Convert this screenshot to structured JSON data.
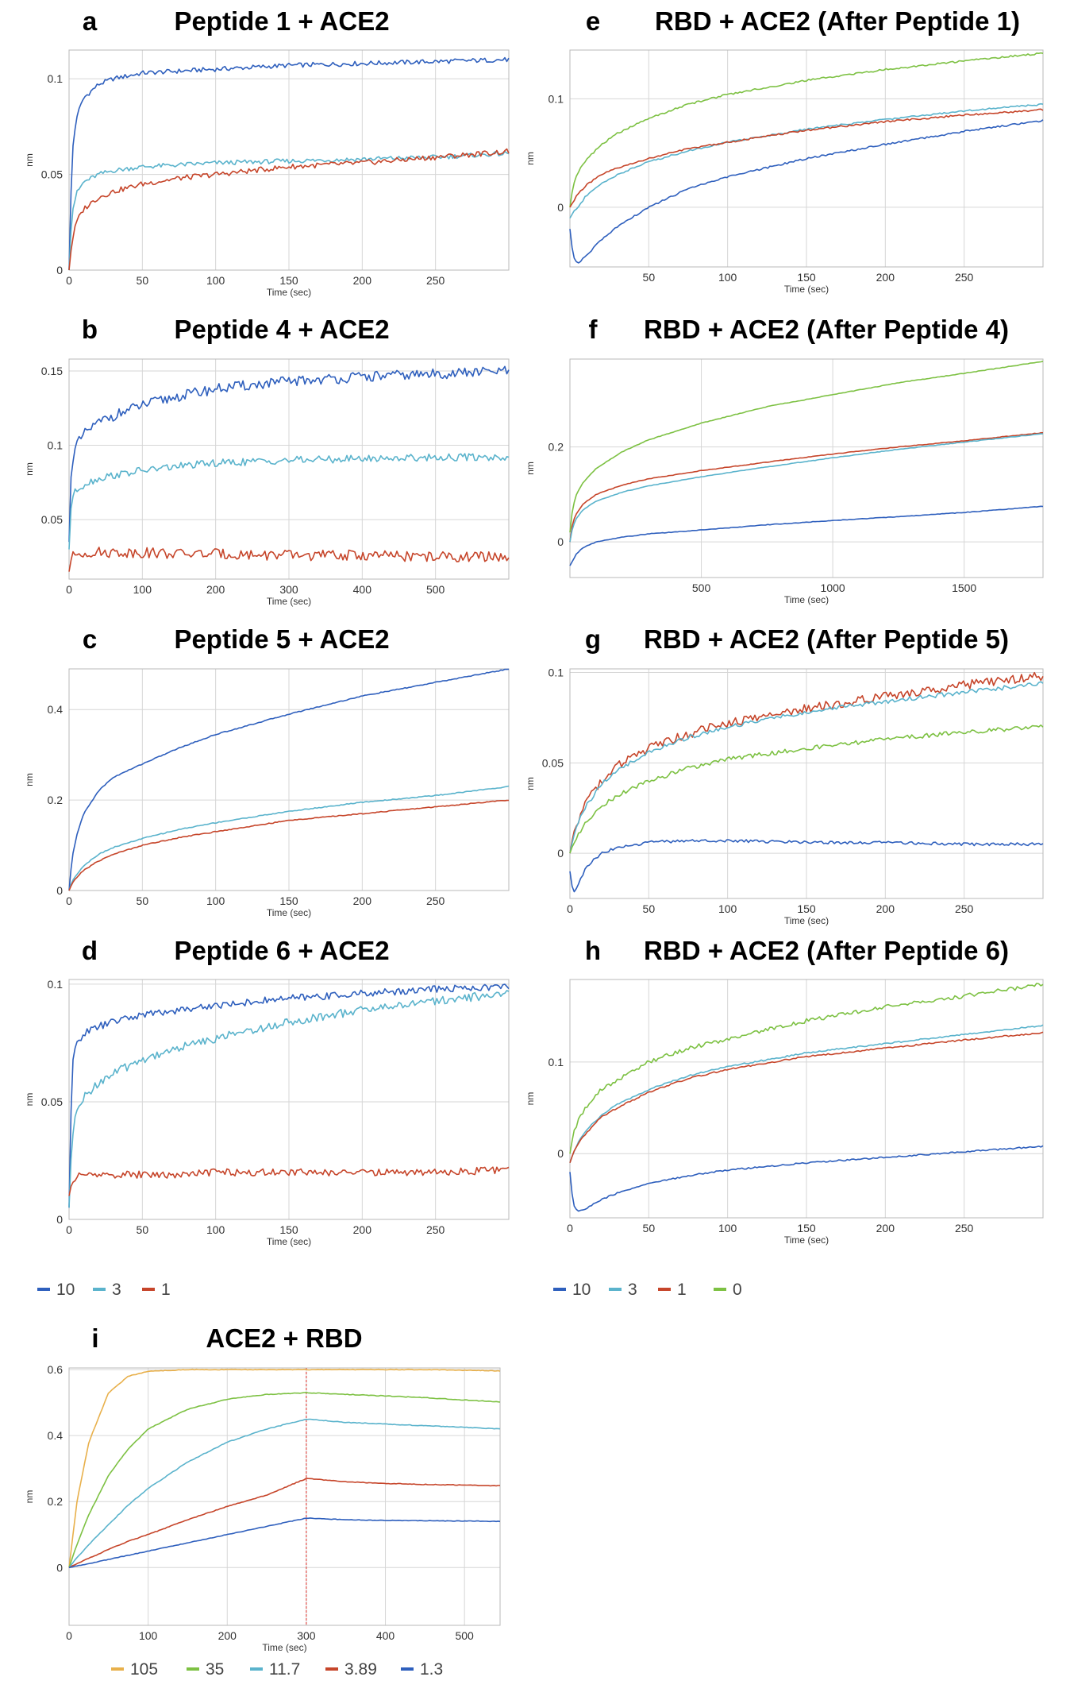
{
  "colors": {
    "c10": "#2e5fbd",
    "c3": "#5ab3cc",
    "c1": "#c6452a",
    "c0": "#7dc143",
    "c105": "#e8b04b"
  },
  "legends": [
    {
      "id": "legend-left",
      "items": [
        {
          "label": "10",
          "color": "#2e5fbd"
        },
        {
          "label": "3",
          "color": "#5ab3cc"
        },
        {
          "label": "1",
          "color": "#c6452a"
        }
      ]
    },
    {
      "id": "legend-right",
      "items": [
        {
          "label": "10",
          "color": "#2e5fbd"
        },
        {
          "label": "3",
          "color": "#5ab3cc"
        },
        {
          "label": "1",
          "color": "#c6452a"
        },
        {
          "label": "0",
          "color": "#7dc143"
        }
      ]
    },
    {
      "id": "legend-i",
      "items": [
        {
          "label": "105",
          "color": "#e8b04b"
        },
        {
          "label": "35",
          "color": "#7dc143"
        },
        {
          "label": "11.7",
          "color": "#5ab3cc"
        },
        {
          "label": "3.89",
          "color": "#c6452a"
        },
        {
          "label": "1.3",
          "color": "#2e5fbd"
        }
      ]
    }
  ],
  "chart_data": [
    {
      "type": "line",
      "id": "a",
      "letter": "a",
      "title": "Peptide 1 + ACE2",
      "xlabel": "Time (sec)",
      "ylabel": "nm",
      "xlim": [
        0,
        300
      ],
      "ylim": [
        0,
        0.115
      ],
      "xticks": [
        0,
        50,
        100,
        150,
        200,
        250
      ],
      "yticks": [
        0,
        0.05,
        0.1
      ],
      "x": [
        0,
        2,
        5,
        10,
        20,
        30,
        50,
        75,
        100,
        150,
        200,
        250,
        300
      ],
      "series": [
        {
          "name": "10",
          "color": "#2e5fbd",
          "noise": 0.0012,
          "values": [
            0.0,
            0.06,
            0.08,
            0.09,
            0.097,
            0.1,
            0.103,
            0.104,
            0.105,
            0.107,
            0.108,
            0.109,
            0.11
          ]
        },
        {
          "name": "3",
          "color": "#5ab3cc",
          "noise": 0.0012,
          "values": [
            0.0,
            0.03,
            0.04,
            0.046,
            0.05,
            0.052,
            0.054,
            0.055,
            0.056,
            0.057,
            0.058,
            0.059,
            0.061
          ]
        },
        {
          "name": "1",
          "color": "#c6452a",
          "noise": 0.0014,
          "values": [
            0.0,
            0.015,
            0.025,
            0.032,
            0.038,
            0.041,
            0.045,
            0.048,
            0.05,
            0.054,
            0.056,
            0.059,
            0.062
          ]
        }
      ]
    },
    {
      "type": "line",
      "id": "b",
      "letter": "b",
      "title": "Peptide 4 + ACE2",
      "xlabel": "Time (sec)",
      "ylabel": "nm",
      "xlim": [
        0,
        600
      ],
      "ylim": [
        0.01,
        0.158
      ],
      "xticks": [
        0,
        100,
        200,
        300,
        400,
        500
      ],
      "yticks": [
        0.05,
        0.1,
        0.15
      ],
      "x": [
        0,
        2,
        5,
        10,
        25,
        50,
        100,
        150,
        200,
        300,
        400,
        500,
        600
      ],
      "series": [
        {
          "name": "10",
          "color": "#2e5fbd",
          "noise": 0.0035,
          "values": [
            0.035,
            0.075,
            0.09,
            0.1,
            0.11,
            0.118,
            0.127,
            0.133,
            0.138,
            0.143,
            0.146,
            0.148,
            0.15
          ]
        },
        {
          "name": "3",
          "color": "#5ab3cc",
          "noise": 0.0025,
          "values": [
            0.03,
            0.055,
            0.065,
            0.07,
            0.075,
            0.079,
            0.083,
            0.086,
            0.088,
            0.09,
            0.091,
            0.092,
            0.092
          ]
        },
        {
          "name": "1",
          "color": "#c6452a",
          "noise": 0.0035,
          "values": [
            0.015,
            0.022,
            0.025,
            0.027,
            0.028,
            0.028,
            0.028,
            0.027,
            0.027,
            0.026,
            0.026,
            0.025,
            0.025
          ]
        }
      ]
    },
    {
      "type": "line",
      "id": "c",
      "letter": "c",
      "title": "Peptide 5 + ACE2",
      "xlabel": "Time (sec)",
      "ylabel": "nm",
      "xlim": [
        0,
        300
      ],
      "ylim": [
        0,
        0.49
      ],
      "xticks": [
        0,
        50,
        100,
        150,
        200,
        250
      ],
      "yticks": [
        0,
        0.2,
        0.4
      ],
      "x": [
        0,
        2,
        5,
        10,
        20,
        30,
        50,
        75,
        100,
        150,
        200,
        250,
        300
      ],
      "series": [
        {
          "name": "10",
          "color": "#2e5fbd",
          "noise": 0.001,
          "values": [
            0.0,
            0.07,
            0.12,
            0.17,
            0.22,
            0.25,
            0.28,
            0.315,
            0.345,
            0.39,
            0.43,
            0.46,
            0.49
          ]
        },
        {
          "name": "3",
          "color": "#5ab3cc",
          "noise": 0.001,
          "values": [
            0.0,
            0.02,
            0.035,
            0.055,
            0.08,
            0.095,
            0.115,
            0.135,
            0.15,
            0.175,
            0.195,
            0.21,
            0.23
          ]
        },
        {
          "name": "1",
          "color": "#c6452a",
          "noise": 0.001,
          "values": [
            0.0,
            0.015,
            0.028,
            0.045,
            0.065,
            0.08,
            0.1,
            0.117,
            0.13,
            0.155,
            0.17,
            0.185,
            0.2
          ]
        }
      ]
    },
    {
      "type": "line",
      "id": "d",
      "letter": "d",
      "title": "Peptide 6 + ACE2",
      "xlabel": "Time (sec)",
      "ylabel": "nm",
      "xlim": [
        0,
        300
      ],
      "ylim": [
        0,
        0.102
      ],
      "xticks": [
        0,
        50,
        100,
        150,
        200,
        250
      ],
      "yticks": [
        0,
        0.05,
        0.1
      ],
      "x": [
        0,
        2,
        5,
        10,
        20,
        30,
        50,
        75,
        100,
        150,
        200,
        250,
        300
      ],
      "series": [
        {
          "name": "10",
          "color": "#2e5fbd",
          "noise": 0.0015,
          "values": [
            0.005,
            0.065,
            0.075,
            0.079,
            0.082,
            0.084,
            0.087,
            0.089,
            0.091,
            0.094,
            0.096,
            0.098,
            0.099
          ]
        },
        {
          "name": "3",
          "color": "#5ab3cc",
          "noise": 0.0018,
          "values": [
            0.005,
            0.035,
            0.045,
            0.052,
            0.058,
            0.062,
            0.068,
            0.073,
            0.077,
            0.084,
            0.089,
            0.093,
            0.096
          ]
        },
        {
          "name": "1",
          "color": "#c6452a",
          "noise": 0.0015,
          "values": [
            0.01,
            0.016,
            0.018,
            0.019,
            0.019,
            0.019,
            0.019,
            0.019,
            0.02,
            0.02,
            0.02,
            0.02,
            0.021
          ]
        }
      ]
    },
    {
      "type": "line",
      "id": "e",
      "letter": "e",
      "title": "RBD + ACE2 (After Peptide 1)",
      "xlabel": "Time (sec)",
      "ylabel": "nm",
      "xlim": [
        0,
        300
      ],
      "ylim": [
        -0.055,
        0.145
      ],
      "xticks": [
        50,
        100,
        150,
        200,
        250
      ],
      "yticks": [
        0,
        0.1
      ],
      "x": [
        0,
        2,
        5,
        10,
        20,
        30,
        50,
        75,
        100,
        150,
        200,
        250,
        300
      ],
      "series": [
        {
          "name": "0",
          "color": "#7dc143",
          "noise": 0.0008,
          "values": [
            0.0,
            0.02,
            0.032,
            0.043,
            0.058,
            0.068,
            0.082,
            0.095,
            0.104,
            0.117,
            0.127,
            0.135,
            0.142
          ]
        },
        {
          "name": "3",
          "color": "#5ab3cc",
          "noise": 0.0008,
          "values": [
            -0.01,
            -0.005,
            0.0,
            0.01,
            0.022,
            0.03,
            0.042,
            0.052,
            0.06,
            0.072,
            0.081,
            0.089,
            0.095
          ]
        },
        {
          "name": "1",
          "color": "#c6452a",
          "noise": 0.0008,
          "values": [
            0.0,
            0.005,
            0.012,
            0.02,
            0.03,
            0.036,
            0.045,
            0.054,
            0.06,
            0.071,
            0.079,
            0.085,
            0.09
          ]
        },
        {
          "name": "10",
          "color": "#2e5fbd",
          "noise": 0.0008,
          "values": [
            -0.02,
            -0.045,
            -0.052,
            -0.045,
            -0.03,
            -0.018,
            0.0,
            0.017,
            0.028,
            0.045,
            0.058,
            0.07,
            0.08
          ]
        }
      ]
    },
    {
      "type": "line",
      "id": "f",
      "letter": "f",
      "title": "RBD + ACE2 (After Peptide 4)",
      "xlabel": "Time (sec)",
      "ylabel": "nm",
      "xlim": [
        0,
        1800
      ],
      "ylim": [
        -0.075,
        0.385
      ],
      "xticks": [
        500,
        1000,
        1500
      ],
      "yticks": [
        0,
        0.2
      ],
      "x": [
        0,
        10,
        25,
        50,
        100,
        200,
        300,
        500,
        750,
        1000,
        1250,
        1500,
        1800
      ],
      "series": [
        {
          "name": "0",
          "color": "#7dc143",
          "noise": 0.0006,
          "values": [
            0.02,
            0.07,
            0.1,
            0.125,
            0.155,
            0.19,
            0.215,
            0.25,
            0.285,
            0.31,
            0.335,
            0.355,
            0.38
          ]
        },
        {
          "name": "1",
          "color": "#c6452a",
          "noise": 0.0006,
          "values": [
            0.0,
            0.04,
            0.06,
            0.08,
            0.1,
            0.12,
            0.133,
            0.15,
            0.168,
            0.185,
            0.2,
            0.213,
            0.23
          ]
        },
        {
          "name": "3",
          "color": "#5ab3cc",
          "noise": 0.0006,
          "values": [
            0.0,
            0.03,
            0.05,
            0.068,
            0.086,
            0.105,
            0.118,
            0.137,
            0.158,
            0.177,
            0.195,
            0.21,
            0.228
          ]
        },
        {
          "name": "10",
          "color": "#2e5fbd",
          "noise": 0.0006,
          "values": [
            -0.05,
            -0.04,
            -0.025,
            -0.012,
            0.0,
            0.01,
            0.017,
            0.025,
            0.036,
            0.045,
            0.053,
            0.062,
            0.075
          ]
        }
      ]
    },
    {
      "type": "line",
      "id": "g",
      "letter": "g",
      "title": "RBD + ACE2 (After Peptide 5)",
      "xlabel": "Time (sec)",
      "ylabel": "nm",
      "xlim": [
        0,
        300
      ],
      "ylim": [
        -0.025,
        0.102
      ],
      "xticks": [
        0,
        50,
        100,
        150,
        200,
        250
      ],
      "yticks": [
        0,
        0.05,
        0.1
      ],
      "x": [
        0,
        2,
        5,
        10,
        20,
        30,
        50,
        75,
        100,
        150,
        200,
        250,
        300
      ],
      "series": [
        {
          "name": "1",
          "color": "#c6452a",
          "noise": 0.0025,
          "values": [
            0.0,
            0.01,
            0.018,
            0.028,
            0.04,
            0.048,
            0.058,
            0.066,
            0.072,
            0.08,
            0.087,
            0.093,
            0.098
          ]
        },
        {
          "name": "3",
          "color": "#5ab3cc",
          "noise": 0.0012,
          "values": [
            0.0,
            0.008,
            0.016,
            0.026,
            0.038,
            0.046,
            0.056,
            0.064,
            0.07,
            0.078,
            0.084,
            0.089,
            0.094
          ]
        },
        {
          "name": "0",
          "color": "#7dc143",
          "noise": 0.0012,
          "values": [
            0.0,
            0.005,
            0.01,
            0.017,
            0.026,
            0.032,
            0.04,
            0.047,
            0.052,
            0.058,
            0.063,
            0.067,
            0.07
          ]
        },
        {
          "name": "10",
          "color": "#2e5fbd",
          "noise": 0.0008,
          "values": [
            -0.01,
            -0.022,
            -0.018,
            -0.008,
            0.0,
            0.003,
            0.006,
            0.007,
            0.007,
            0.006,
            0.006,
            0.005,
            0.005
          ]
        }
      ]
    },
    {
      "type": "line",
      "id": "h",
      "letter": "h",
      "title": "RBD + ACE2 (After Peptide 6)",
      "xlabel": "Time (sec)",
      "ylabel": "nm",
      "xlim": [
        0,
        300
      ],
      "ylim": [
        -0.07,
        0.19
      ],
      "xticks": [
        0,
        50,
        100,
        150,
        200,
        250
      ],
      "yticks": [
        0,
        0.1
      ],
      "x": [
        0,
        2,
        5,
        10,
        20,
        30,
        50,
        75,
        100,
        150,
        200,
        250,
        300
      ],
      "series": [
        {
          "name": "0",
          "color": "#7dc143",
          "noise": 0.0022,
          "values": [
            0.0,
            0.02,
            0.035,
            0.05,
            0.07,
            0.08,
            0.1,
            0.115,
            0.125,
            0.145,
            0.16,
            0.172,
            0.185
          ]
        },
        {
          "name": "3",
          "color": "#5ab3cc",
          "noise": 0.0008,
          "values": [
            -0.01,
            0.0,
            0.012,
            0.025,
            0.042,
            0.054,
            0.07,
            0.085,
            0.095,
            0.11,
            0.12,
            0.13,
            0.14
          ]
        },
        {
          "name": "1",
          "color": "#c6452a",
          "noise": 0.0008,
          "values": [
            -0.01,
            0.0,
            0.01,
            0.022,
            0.04,
            0.05,
            0.067,
            0.082,
            0.092,
            0.106,
            0.115,
            0.124,
            0.132
          ]
        },
        {
          "name": "10",
          "color": "#2e5fbd",
          "noise": 0.0008,
          "values": [
            -0.02,
            -0.055,
            -0.063,
            -0.06,
            -0.05,
            -0.043,
            -0.033,
            -0.024,
            -0.018,
            -0.01,
            -0.004,
            0.002,
            0.008
          ]
        }
      ]
    },
    {
      "type": "line",
      "id": "i",
      "letter": "i",
      "title": "ACE2 + RBD",
      "xlabel": "Time (sec)",
      "ylabel": "nm",
      "xlim": [
        0,
        545
      ],
      "ylim": [
        -0.175,
        0.605
      ],
      "xticks": [
        0,
        100,
        200,
        300,
        400,
        500
      ],
      "yticks": [
        0,
        0.2,
        0.4,
        0.6
      ],
      "marker_x": 300,
      "x": [
        0,
        10,
        25,
        50,
        75,
        100,
        150,
        200,
        250,
        300,
        350,
        400,
        450,
        500,
        545
      ],
      "series": [
        {
          "name": "105",
          "color": "#e8b04b",
          "noise": 0.001,
          "values": [
            0.0,
            0.2,
            0.38,
            0.53,
            0.58,
            0.595,
            0.6,
            0.6,
            0.6,
            0.6,
            0.6,
            0.6,
            0.6,
            0.598,
            0.596
          ]
        },
        {
          "name": "35",
          "color": "#7dc143",
          "noise": 0.001,
          "values": [
            0.0,
            0.07,
            0.16,
            0.28,
            0.36,
            0.42,
            0.48,
            0.51,
            0.525,
            0.53,
            0.525,
            0.52,
            0.515,
            0.508,
            0.502
          ]
        },
        {
          "name": "11.7",
          "color": "#5ab3cc",
          "noise": 0.001,
          "values": [
            0.0,
            0.03,
            0.07,
            0.13,
            0.19,
            0.24,
            0.32,
            0.38,
            0.42,
            0.45,
            0.44,
            0.435,
            0.43,
            0.425,
            0.42
          ]
        },
        {
          "name": "3.89",
          "color": "#c6452a",
          "noise": 0.001,
          "values": [
            0.0,
            0.012,
            0.028,
            0.055,
            0.08,
            0.1,
            0.145,
            0.185,
            0.22,
            0.27,
            0.26,
            0.255,
            0.252,
            0.25,
            0.248
          ]
        },
        {
          "name": "1.3",
          "color": "#2e5fbd",
          "noise": 0.0008,
          "values": [
            0.0,
            0.005,
            0.012,
            0.025,
            0.037,
            0.05,
            0.075,
            0.1,
            0.125,
            0.15,
            0.145,
            0.143,
            0.142,
            0.141,
            0.14
          ]
        }
      ]
    }
  ]
}
